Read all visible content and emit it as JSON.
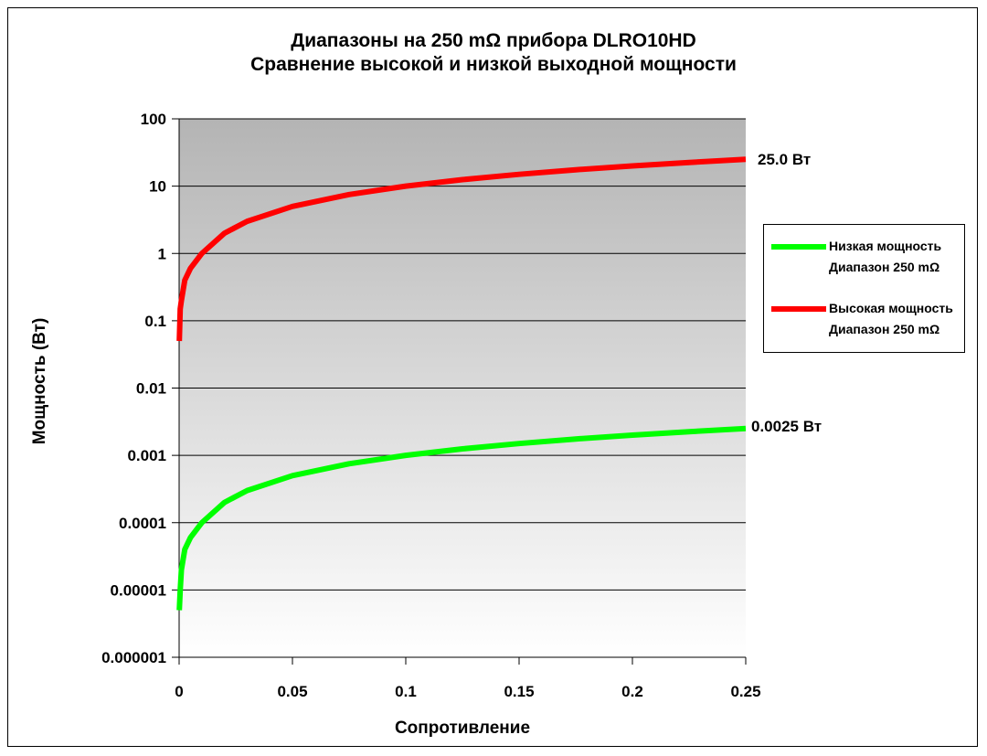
{
  "chart_data": {
    "type": "line",
    "title": [
      "Диапазоны на 250 mΩ прибора DLRO10HD",
      "Сравнение высокой и низкой выходной мощности"
    ],
    "xlabel": "Сопротивление",
    "ylabel": "Мощность (Вт)",
    "xlim": [
      0,
      0.25
    ],
    "ylim": [
      1e-06,
      100
    ],
    "yscale": "log",
    "x_ticks": [
      "0",
      "0.05",
      "0.1",
      "0.15",
      "0.2",
      "0.25"
    ],
    "y_ticks": [
      "0.000001",
      "0.00001",
      "0.0001",
      "0.001",
      "0.01",
      "0.1",
      "1",
      "10",
      "100"
    ],
    "grid": "horizontal",
    "legend_position": "right",
    "series": [
      {
        "name": "Низкая мощность Диапазон 250 mΩ",
        "color": "#00ff00",
        "x": [
          0.0001,
          0.0005,
          0.001,
          0.0025,
          0.005,
          0.01,
          0.02,
          0.03,
          0.05,
          0.075,
          0.1,
          0.125,
          0.15,
          0.175,
          0.2,
          0.225,
          0.25
        ],
        "y": [
          5e-06,
          1e-05,
          2e-05,
          4e-05,
          6e-05,
          0.0001,
          0.0002,
          0.0003,
          0.0005,
          0.00075,
          0.001,
          0.00125,
          0.0015,
          0.00175,
          0.002,
          0.00225,
          0.0025
        ],
        "end_label": "0.0025",
        "end_unit": "Вт"
      },
      {
        "name": "Высокая мощность Диапазон 250 mΩ",
        "color": "#ff0000",
        "x": [
          0.0001,
          0.0005,
          0.001,
          0.0025,
          0.005,
          0.01,
          0.02,
          0.03,
          0.05,
          0.075,
          0.1,
          0.125,
          0.15,
          0.175,
          0.2,
          0.225,
          0.25
        ],
        "y": [
          0.05,
          0.15,
          0.2,
          0.4,
          0.6,
          1,
          2,
          3,
          5,
          7.5,
          10,
          12.5,
          15,
          17.5,
          20,
          22.5,
          25
        ],
        "end_label": "25.0",
        "end_unit": "Вт"
      }
    ]
  },
  "legend": {
    "low": {
      "line1": "Низкая мощность",
      "line2": "Диапазон 250 mΩ"
    },
    "high": {
      "line1": "Высокая мощность",
      "line2": "Диапазон 250 mΩ"
    }
  }
}
